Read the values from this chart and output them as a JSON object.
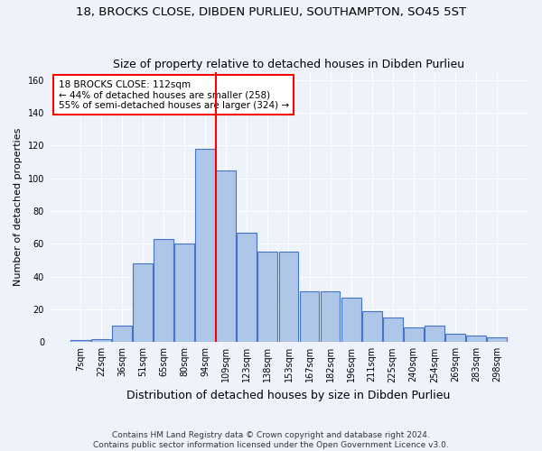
{
  "title": "18, BROCKS CLOSE, DIBDEN PURLIEU, SOUTHAMPTON, SO45 5ST",
  "subtitle": "Size of property relative to detached houses in Dibden Purlieu",
  "xlabel": "Distribution of detached houses by size in Dibden Purlieu",
  "ylabel": "Number of detached properties",
  "bin_labels": [
    "7sqm",
    "22sqm",
    "36sqm",
    "51sqm",
    "65sqm",
    "80sqm",
    "94sqm",
    "109sqm",
    "123sqm",
    "138sqm",
    "153sqm",
    "167sqm",
    "182sqm",
    "196sqm",
    "211sqm",
    "225sqm",
    "240sqm",
    "254sqm",
    "269sqm",
    "283sqm",
    "298sqm"
  ],
  "bar_heights": [
    1,
    2,
    10,
    48,
    63,
    60,
    118,
    105,
    67,
    55,
    55,
    31,
    31,
    27,
    19,
    15,
    9,
    10,
    5,
    4,
    3
  ],
  "bar_color": "#aec6e8",
  "bar_edge_color": "#4472c4",
  "vline_x_idx": 6.5,
  "vline_color": "red",
  "annotation_title": "18 BROCKS CLOSE: 112sqm",
  "annotation_line1": "← 44% of detached houses are smaller (258)",
  "annotation_line2": "55% of semi-detached houses are larger (324) →",
  "annotation_box_color": "white",
  "annotation_box_edge": "red",
  "ylim": [
    0,
    165
  ],
  "yticks": [
    0,
    20,
    40,
    60,
    80,
    100,
    120,
    140,
    160
  ],
  "footer1": "Contains HM Land Registry data © Crown copyright and database right 2024.",
  "footer2": "Contains public sector information licensed under the Open Government Licence v3.0.",
  "bg_color": "#eef3fb",
  "title_fontsize": 9.5,
  "subtitle_fontsize": 9,
  "ylabel_fontsize": 8,
  "xlabel_fontsize": 9,
  "tick_fontsize": 7,
  "footer_fontsize": 6.5
}
